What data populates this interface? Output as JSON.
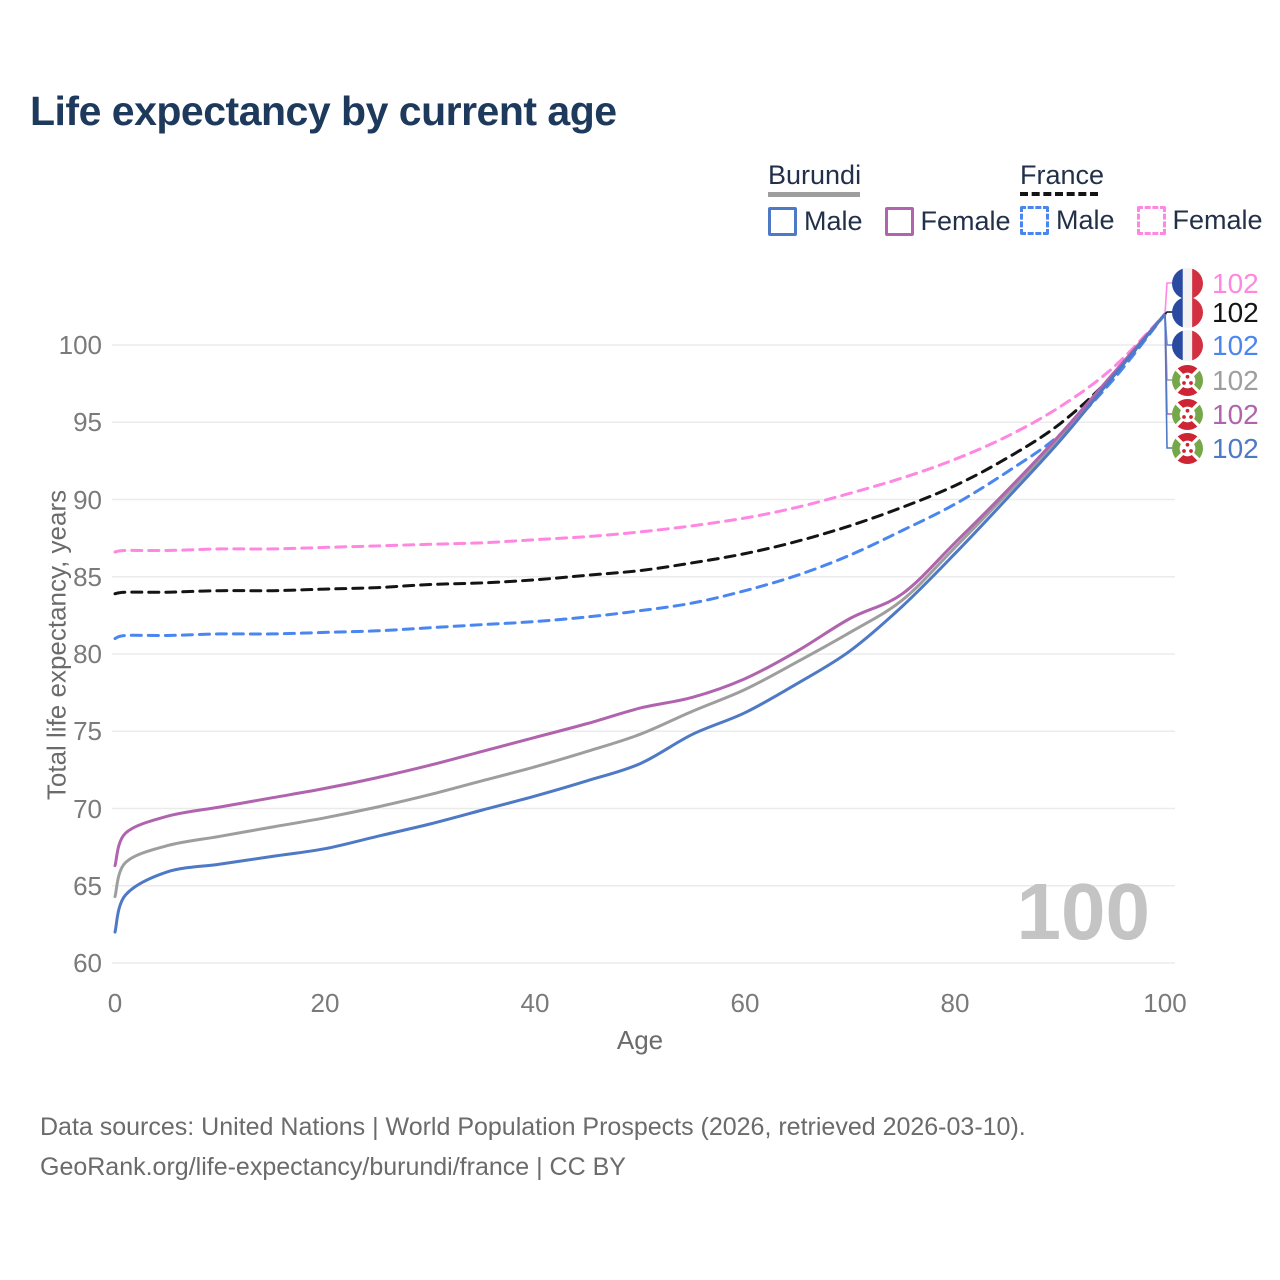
{
  "title": "Life expectancy by current age",
  "legend": {
    "groups": [
      {
        "name": "Burundi",
        "line_style": "solid",
        "underline_color": "#9e9e9e",
        "items": [
          {
            "label": "Male",
            "color": "#4e79c5"
          },
          {
            "label": "Female",
            "color": "#b164ae"
          }
        ]
      },
      {
        "name": "France",
        "line_style": "dashed",
        "underline_color": "#141414",
        "items": [
          {
            "label": "Male",
            "color": "#4a86ef"
          },
          {
            "label": "Female",
            "color": "#ff87e1"
          }
        ]
      }
    ]
  },
  "watermark": "100",
  "footer": {
    "line1": "Data sources: United Nations | World Population Prospects (2026, retrieved 2026-03-10).",
    "line2": "GeoRank.org/life-expectancy/burundi/france | CC BY"
  },
  "colors": {
    "title_text": "#1d3a5c",
    "legend_text": "#22304a",
    "tick_text": "#7a7a7a",
    "axis_title_text": "#6b6b6b",
    "gridline": "#ebebeb",
    "watermark": "#c4c4c4",
    "footer_text": "#6b6b6b",
    "flag_france_blue": "#2a4aa1",
    "flag_france_red": "#d22f41",
    "flag_burundi_red": "#cd2533",
    "flag_burundi_green": "#76a74b"
  },
  "chart_data": {
    "type": "line",
    "title": "Life expectancy by current age",
    "xlabel": "Age",
    "ylabel": "Total life expectancy, years",
    "xlim": [
      0,
      100
    ],
    "ylim": [
      60,
      102
    ],
    "x_ticks": [
      0,
      20,
      40,
      60,
      80,
      100
    ],
    "y_ticks": [
      60,
      65,
      70,
      75,
      80,
      85,
      90,
      95,
      100
    ],
    "grid": "horizontal-only",
    "legend_position": "top-right",
    "x": [
      0,
      1,
      5,
      10,
      15,
      20,
      25,
      30,
      35,
      40,
      45,
      50,
      55,
      60,
      65,
      70,
      75,
      80,
      85,
      90,
      95,
      100
    ],
    "series": [
      {
        "name": "France Female",
        "country": "france",
        "sex": "female",
        "color": "#ff87e1",
        "dashed": true,
        "end_label": "102",
        "values": [
          86.6,
          86.7,
          86.7,
          86.8,
          86.8,
          86.9,
          87.0,
          87.1,
          87.2,
          87.4,
          87.6,
          87.9,
          88.3,
          88.8,
          89.5,
          90.4,
          91.4,
          92.6,
          94.1,
          96.0,
          98.5,
          102
        ]
      },
      {
        "name": "France Both sexes",
        "country": "france",
        "sex": "both",
        "color": "#141414",
        "dashed": true,
        "end_label": "102",
        "values": [
          83.9,
          84.0,
          84.0,
          84.1,
          84.1,
          84.2,
          84.3,
          84.5,
          84.6,
          84.8,
          85.1,
          85.4,
          85.9,
          86.5,
          87.3,
          88.3,
          89.5,
          90.9,
          92.7,
          94.9,
          98.0,
          102
        ]
      },
      {
        "name": "France Male",
        "country": "france",
        "sex": "male",
        "color": "#4a86ef",
        "dashed": true,
        "end_label": "102",
        "values": [
          81.0,
          81.2,
          81.2,
          81.3,
          81.3,
          81.4,
          81.5,
          81.7,
          81.9,
          82.1,
          82.4,
          82.8,
          83.3,
          84.1,
          85.1,
          86.4,
          88.0,
          89.7,
          91.8,
          94.2,
          97.7,
          102
        ]
      },
      {
        "name": "Burundi Both sexes",
        "country": "burundi",
        "sex": "both",
        "color": "#9e9e9e",
        "dashed": false,
        "end_label": "102",
        "values": [
          64.3,
          66.5,
          67.6,
          68.2,
          68.8,
          69.4,
          70.1,
          70.9,
          71.8,
          72.7,
          73.7,
          74.8,
          76.3,
          77.7,
          79.5,
          81.4,
          83.5,
          86.9,
          90.4,
          94.0,
          98.0,
          102
        ]
      },
      {
        "name": "Burundi Female",
        "country": "burundi",
        "sex": "female",
        "color": "#b164ae",
        "dashed": false,
        "end_label": "102",
        "values": [
          66.3,
          68.4,
          69.5,
          70.1,
          70.7,
          71.3,
          72.0,
          72.8,
          73.7,
          74.6,
          75.5,
          76.5,
          77.2,
          78.4,
          80.2,
          82.3,
          83.9,
          87.2,
          90.6,
          94.2,
          98.1,
          102
        ]
      },
      {
        "name": "Burundi Male",
        "country": "burundi",
        "sex": "male",
        "color": "#4e79c5",
        "dashed": false,
        "end_label": "102",
        "values": [
          62.0,
          64.4,
          65.9,
          66.4,
          66.9,
          67.4,
          68.2,
          69.0,
          69.9,
          70.8,
          71.8,
          72.9,
          74.8,
          76.2,
          78.1,
          80.2,
          83.1,
          86.5,
          90.1,
          93.8,
          97.9,
          102
        ]
      }
    ]
  }
}
